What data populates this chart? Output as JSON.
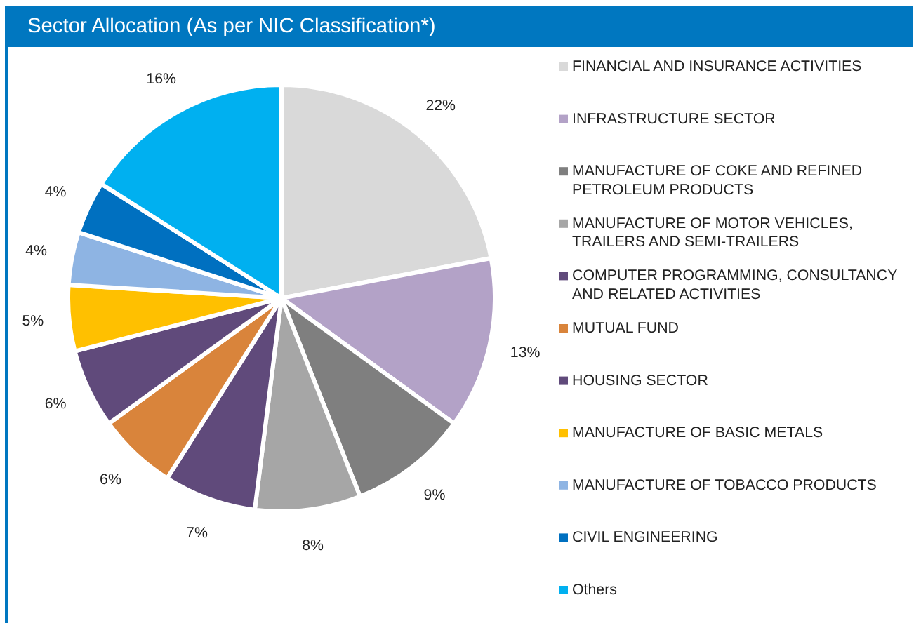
{
  "chart_data": {
    "type": "pie",
    "title": "Sector Allocation (As per NIC Classification*)",
    "categories": [
      "FINANCIAL AND INSURANCE ACTIVITIES",
      "INFRASTRUCTURE SECTOR",
      "MANUFACTURE OF COKE AND REFINED PETROLEUM PRODUCTS",
      "MANUFACTURE OF MOTOR VEHICLES, TRAILERS AND SEMI-TRAILERS",
      "COMPUTER PROGRAMMING, CONSULTANCY AND RELATED ACTIVITIES",
      "MUTUAL FUND",
      "HOUSING SECTOR",
      "MANUFACTURE OF BASIC METALS",
      "MANUFACTURE OF TOBACCO PRODUCTS",
      "CIVIL ENGINEERING",
      "Others"
    ],
    "values": [
      22,
      13,
      9,
      8,
      7,
      6,
      6,
      5,
      4,
      4,
      16
    ],
    "value_labels": [
      "22%",
      "13%",
      "9%",
      "8%",
      "7%",
      "6%",
      "6%",
      "5%",
      "4%",
      "4%",
      "16%"
    ],
    "colors": [
      "#d9d9d9",
      "#b3a2c7",
      "#7f7f7f",
      "#a6a6a6",
      "#604a7b",
      "#d9843b",
      "#604a7b",
      "#ffc000",
      "#8eb4e3",
      "#0070c0",
      "#00b0f0"
    ],
    "legend": "right"
  }
}
